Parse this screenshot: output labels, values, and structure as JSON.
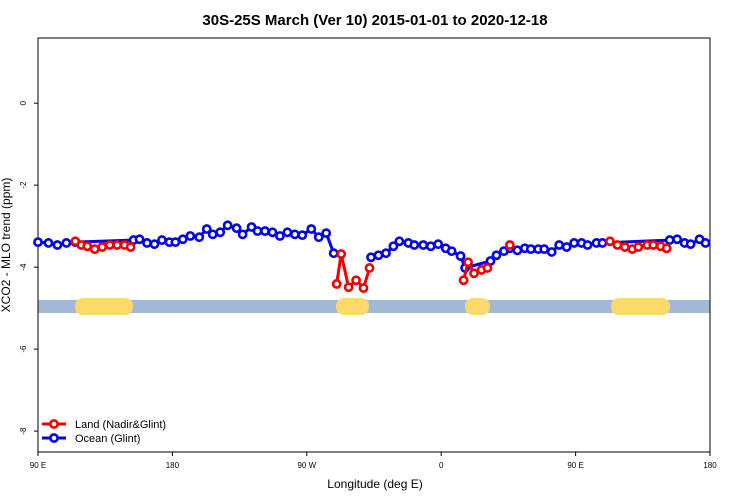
{
  "chart_data": {
    "type": "line",
    "title": "30S-25S March (Ver 10)   2015-01-01 to 2020-12-18",
    "x_label": "Longitude (deg E)",
    "y_label": "XCO2 - MLO trend (ppm)",
    "xlim": [
      90,
      540
    ],
    "xticks": [
      {
        "value": 90,
        "label": "90 E"
      },
      {
        "value": 180,
        "label": "180"
      },
      {
        "value": 270,
        "label": "90 W"
      },
      {
        "value": 360,
        "label": "0"
      },
      {
        "value": 450,
        "label": "90 E"
      },
      {
        "value": 540,
        "label": "180"
      }
    ],
    "ylim": [
      -8.51,
      1.59
    ],
    "yticks": [
      0,
      -2,
      -4,
      -6,
      -8
    ],
    "legend": "bottom-left",
    "series": [
      {
        "name": "Ocean (Glint)",
        "color": "#0000ee",
        "x": [
          90,
          97,
          103,
          109,
          115,
          154,
          158,
          163,
          168,
          173,
          178,
          182,
          187,
          192,
          198,
          203,
          207,
          212,
          217,
          223,
          227,
          233,
          237,
          242,
          247,
          252,
          257,
          262,
          267,
          273,
          278,
          283,
          288,
          null,
          313,
          318,
          323,
          328,
          332,
          338,
          342,
          348,
          353,
          358,
          363,
          367,
          373,
          376,
          393,
          397,
          402,
          406,
          411,
          416,
          420,
          425,
          429,
          434,
          439,
          444,
          449,
          454,
          458,
          464,
          468,
          513,
          518,
          523,
          527,
          533,
          537
        ],
        "values": [
          -3.39,
          -3.41,
          -3.46,
          -3.41,
          -3.39,
          -3.34,
          -3.32,
          -3.41,
          -3.44,
          -3.34,
          -3.39,
          -3.39,
          -3.32,
          -3.24,
          -3.27,
          -3.07,
          -3.2,
          -3.15,
          -2.98,
          -3.05,
          -3.2,
          -3.02,
          -3.12,
          -3.12,
          -3.15,
          -3.24,
          -3.15,
          -3.2,
          -3.22,
          -3.07,
          -3.27,
          -3.17,
          -3.66,
          null,
          -3.76,
          -3.71,
          -3.66,
          -3.49,
          -3.37,
          -3.41,
          -3.46,
          -3.46,
          -3.49,
          -3.44,
          -3.54,
          -3.61,
          -3.73,
          -4.02,
          -3.85,
          -3.71,
          -3.61,
          -3.54,
          -3.59,
          -3.54,
          -3.56,
          -3.56,
          -3.56,
          -3.63,
          -3.46,
          -3.51,
          -3.41,
          -3.41,
          -3.46,
          -3.41,
          -3.41,
          -3.34,
          -3.32,
          -3.41,
          -3.44,
          -3.32,
          -3.41
        ]
      },
      {
        "name": "Land (Nadir&Glint)",
        "color": "#ee0000",
        "x": [
          115,
          119,
          123,
          128,
          133,
          138,
          143,
          148,
          152,
          null,
          290,
          293,
          298,
          303,
          308,
          312,
          null,
          375,
          378,
          382,
          387,
          391,
          null,
          406,
          null,
          473,
          478,
          483,
          488,
          492,
          498,
          502,
          507,
          511
        ],
        "values": [
          -3.37,
          -3.46,
          -3.49,
          -3.56,
          -3.51,
          -3.46,
          -3.46,
          -3.46,
          -3.51,
          null,
          -4.41,
          -3.68,
          -4.49,
          -4.32,
          -4.51,
          -4.02,
          null,
          -4.32,
          -3.88,
          -4.15,
          -4.07,
          -4.02,
          null,
          -3.46,
          null,
          -3.37,
          -3.46,
          -3.51,
          -3.56,
          -3.51,
          -3.46,
          -3.46,
          -3.49,
          -3.54
        ]
      }
    ]
  }
}
